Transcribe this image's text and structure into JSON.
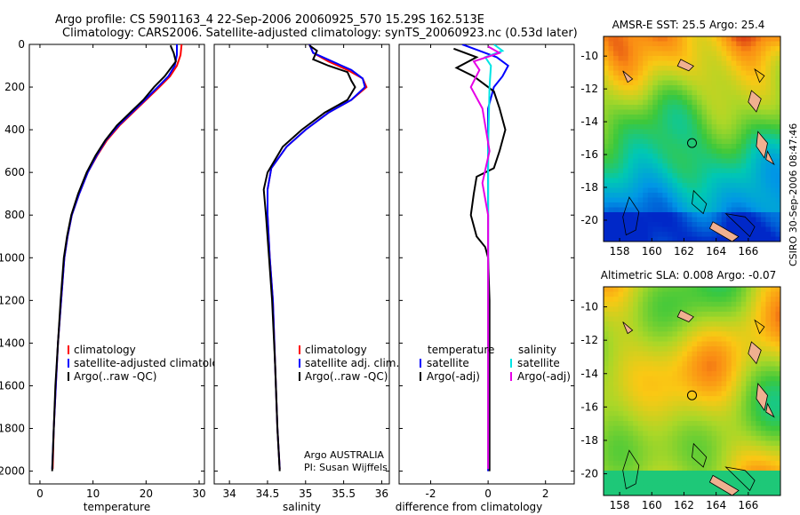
{
  "header": {
    "title_line1": "Argo profile: CS 5901163_4 22-Sep-2006 20060925_570 15.29S 162.513E",
    "title_line2": "Climatology: CARS2006. Satellite-adjusted climatology: synTS_20060923.nc (0.53d later)"
  },
  "credit": "CSIRO 30-Sep-2006 08:47:46",
  "colors": {
    "climatology": "#ff0000",
    "satellite": "#0000ff",
    "argo": "#000000",
    "sal_satellite": "#00e5e5",
    "sal_argo": "#e600e6"
  },
  "chart_data": [
    {
      "type": "line",
      "id": "temperature",
      "xlabel": "temperature",
      "ylabel": "",
      "xlim": [
        -2,
        31
      ],
      "ylim": [
        2060,
        0
      ],
      "xticks": [
        0,
        10,
        20,
        30
      ],
      "yticks": [
        0,
        200,
        400,
        600,
        800,
        1000,
        1200,
        1400,
        1600,
        1800,
        2000
      ],
      "legend": [
        "climatology",
        "satellite-adjusted climatology",
        "Argo(..raw -QC)"
      ],
      "series": [
        {
          "name": "climatology",
          "color": "#ff0000",
          "points": [
            [
              26.7,
              0
            ],
            [
              26.5,
              50
            ],
            [
              25.8,
              100
            ],
            [
              24.5,
              150
            ],
            [
              22.5,
              200
            ],
            [
              20,
              260
            ],
            [
              17.5,
              320
            ],
            [
              15,
              380
            ],
            [
              12.6,
              450
            ],
            [
              10.8,
              520
            ],
            [
              9,
              600
            ],
            [
              7.4,
              700
            ],
            [
              6,
              800
            ],
            [
              5.2,
              900
            ],
            [
              4.6,
              1000
            ],
            [
              4,
              1200
            ],
            [
              3.4,
              1400
            ],
            [
              3,
              1600
            ],
            [
              2.6,
              1800
            ],
            [
              2.4,
              1990
            ]
          ]
        },
        {
          "name": "satellite-adjusted climatology",
          "color": "#0000ff",
          "points": [
            [
              25.8,
              0
            ],
            [
              25.8,
              50
            ],
            [
              25.4,
              100
            ],
            [
              24.2,
              150
            ],
            [
              22.2,
              200
            ],
            [
              19.8,
              260
            ],
            [
              17.3,
              320
            ],
            [
              14.8,
              380
            ],
            [
              12.4,
              450
            ],
            [
              10.7,
              520
            ],
            [
              9,
              600
            ],
            [
              7.4,
              700
            ],
            [
              6,
              800
            ],
            [
              5.2,
              900
            ],
            [
              4.6,
              1000
            ],
            [
              4,
              1200
            ],
            [
              3.4,
              1400
            ],
            [
              3,
              1600
            ],
            [
              2.6,
              1800
            ],
            [
              2.3,
              1990
            ]
          ]
        },
        {
          "name": "Argo(..raw -QC)",
          "color": "#000000",
          "points": [
            [
              24.6,
              5
            ],
            [
              25.2,
              40
            ],
            [
              25.6,
              80
            ],
            [
              23.5,
              150
            ],
            [
              21.5,
              200
            ],
            [
              19.5,
              260
            ],
            [
              17,
              320
            ],
            [
              14.5,
              380
            ],
            [
              12.3,
              450
            ],
            [
              10.5,
              520
            ],
            [
              8.8,
              600
            ],
            [
              7.2,
              700
            ],
            [
              5.9,
              800
            ],
            [
              5.1,
              900
            ],
            [
              4.5,
              1000
            ],
            [
              3.9,
              1200
            ],
            [
              3.4,
              1400
            ],
            [
              2.9,
              1600
            ],
            [
              2.6,
              1800
            ],
            [
              2.3,
              2000
            ]
          ]
        }
      ]
    },
    {
      "type": "line",
      "id": "salinity",
      "xlabel": "salinity",
      "ylabel": "",
      "xlim": [
        33.8,
        36.1
      ],
      "ylim": [
        2060,
        0
      ],
      "xticks": [
        34,
        34.5,
        35,
        35.5,
        36
      ],
      "yticks": [],
      "legend": [
        "climatology",
        "satellite adj. clim.",
        "Argo(..raw -QC)"
      ],
      "annotation_line1": "Argo AUSTRALIA",
      "annotation_line2": "PI: Susan Wijffels",
      "series": [
        {
          "name": "climatology",
          "color": "#ff0000",
          "points": [
            [
              35.05,
              0
            ],
            [
              35.1,
              40
            ],
            [
              35.3,
              80
            ],
            [
              35.55,
              120
            ],
            [
              35.75,
              160
            ],
            [
              35.8,
              200
            ],
            [
              35.6,
              260
            ],
            [
              35.3,
              320
            ],
            [
              35,
              400
            ],
            [
              34.75,
              480
            ],
            [
              34.55,
              580
            ],
            [
              34.5,
              680
            ],
            [
              34.5,
              800
            ],
            [
              34.53,
              1000
            ],
            [
              34.57,
              1200
            ],
            [
              34.6,
              1500
            ],
            [
              34.63,
              1800
            ],
            [
              34.66,
              1990
            ]
          ]
        },
        {
          "name": "satellite adj. clim.",
          "color": "#0000ff",
          "points": [
            [
              35.05,
              0
            ],
            [
              35.1,
              40
            ],
            [
              35.35,
              80
            ],
            [
              35.6,
              120
            ],
            [
              35.75,
              160
            ],
            [
              35.78,
              200
            ],
            [
              35.6,
              260
            ],
            [
              35.3,
              320
            ],
            [
              35,
              400
            ],
            [
              34.75,
              480
            ],
            [
              34.55,
              580
            ],
            [
              34.5,
              680
            ],
            [
              34.5,
              800
            ],
            [
              34.53,
              1000
            ],
            [
              34.57,
              1200
            ],
            [
              34.6,
              1500
            ],
            [
              34.63,
              1800
            ],
            [
              34.66,
              1990
            ]
          ]
        },
        {
          "name": "Argo(..raw -QC)",
          "color": "#000000",
          "points": [
            [
              35.05,
              5
            ],
            [
              35.15,
              30
            ],
            [
              35.1,
              70
            ],
            [
              35.3,
              100
            ],
            [
              35.55,
              130
            ],
            [
              35.6,
              170
            ],
            [
              35.65,
              200
            ],
            [
              35.55,
              260
            ],
            [
              35.25,
              320
            ],
            [
              34.95,
              400
            ],
            [
              34.7,
              480
            ],
            [
              34.5,
              600
            ],
            [
              34.45,
              680
            ],
            [
              34.48,
              800
            ],
            [
              34.52,
              1000
            ],
            [
              34.56,
              1200
            ],
            [
              34.6,
              1500
            ],
            [
              34.63,
              1800
            ],
            [
              34.66,
              2000
            ]
          ]
        }
      ]
    },
    {
      "type": "line",
      "id": "difference",
      "xlabel": "difference from climatology",
      "ylabel": "",
      "xlim": [
        -3.1,
        3
      ],
      "ylim": [
        2060,
        0
      ],
      "xticks": [
        -2,
        0,
        2
      ],
      "yticks": [],
      "legend_left": [
        "temperature",
        "satellite",
        "Argo(-adj)"
      ],
      "legend_right": [
        "salinity",
        "satellite",
        "Argo(-adj)"
      ],
      "series": [
        {
          "name": "temperature satellite",
          "color": "#0000ff",
          "points": [
            [
              -0.9,
              0
            ],
            [
              -0.3,
              30
            ],
            [
              0.3,
              60
            ],
            [
              0.7,
              100
            ],
            [
              0.5,
              150
            ],
            [
              0.2,
              200
            ],
            [
              0,
              300
            ],
            [
              0,
              500
            ],
            [
              0,
              1000
            ],
            [
              0,
              2000
            ]
          ]
        },
        {
          "name": "temperature Argo(-adj)",
          "color": "#000000",
          "points": [
            [
              -1.2,
              20
            ],
            [
              -0.4,
              60
            ],
            [
              -1.1,
              110
            ],
            [
              -0.5,
              150
            ],
            [
              0.2,
              220
            ],
            [
              0.4,
              300
            ],
            [
              0.6,
              400
            ],
            [
              0.4,
              500
            ],
            [
              0.2,
              580
            ],
            [
              -0.4,
              620
            ],
            [
              -0.5,
              700
            ],
            [
              -0.6,
              800
            ],
            [
              -0.4,
              900
            ],
            [
              -0.1,
              950
            ],
            [
              0,
              1000
            ],
            [
              0.05,
              1200
            ],
            [
              0.05,
              1500
            ],
            [
              0.05,
              2000
            ]
          ]
        },
        {
          "name": "salinity satellite",
          "color": "#00e5e5",
          "points": [
            [
              0.2,
              0
            ],
            [
              0.5,
              30
            ],
            [
              -0.1,
              60
            ],
            [
              0.1,
              100
            ],
            [
              0.05,
              200
            ],
            [
              0,
              500
            ],
            [
              0,
              1000
            ],
            [
              0,
              1990
            ]
          ]
        },
        {
          "name": "salinity Argo(-adj)",
          "color": "#e600e6",
          "points": [
            [
              0,
              10
            ],
            [
              0.4,
              40
            ],
            [
              -0.5,
              80
            ],
            [
              -0.3,
              120
            ],
            [
              -0.6,
              200
            ],
            [
              -0.2,
              300
            ],
            [
              0.05,
              500
            ],
            [
              -0.2,
              650
            ],
            [
              0,
              800
            ],
            [
              0,
              1000
            ],
            [
              0,
              1990
            ]
          ]
        }
      ]
    },
    {
      "type": "heatmap",
      "id": "sst_map",
      "title": "AMSR-E SST: 25.5 Argo: 25.4",
      "xlim": [
        157,
        168
      ],
      "ylim": [
        -21.3,
        -8.8
      ],
      "xticks": [
        158,
        160,
        162,
        164,
        166
      ],
      "yticks": [
        -10,
        -12,
        -14,
        -16,
        -18,
        -20
      ],
      "marker": {
        "lon": 162.5,
        "lat": -15.3
      }
    },
    {
      "type": "heatmap",
      "id": "sla_map",
      "title": "Altimetric SLA: 0.008 Argo: -0.07",
      "xlim": [
        157,
        168
      ],
      "ylim": [
        -21.3,
        -8.8
      ],
      "xticks": [
        158,
        160,
        162,
        164,
        166
      ],
      "yticks": [
        -10,
        -12,
        -14,
        -16,
        -18,
        -20
      ],
      "marker": {
        "lon": 162.5,
        "lat": -15.3
      }
    }
  ]
}
